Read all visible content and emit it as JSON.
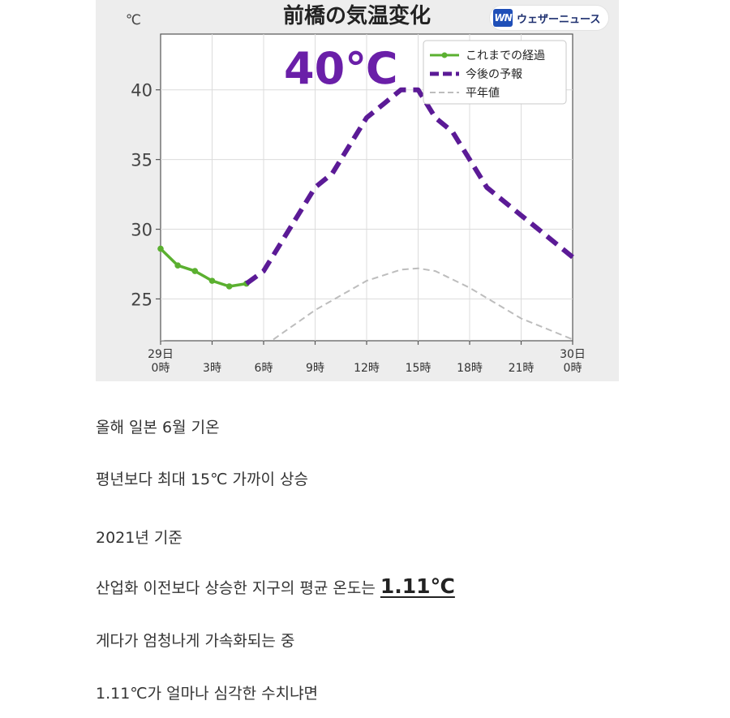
{
  "chart_data": {
    "type": "line",
    "title": "前橋の気温変化",
    "unit_label": "℃",
    "annotation": "40℃",
    "brand": "ウェザーニュース",
    "brand_logo": "WN",
    "ylim": [
      22,
      44
    ],
    "y_ticks": [
      25,
      30,
      35,
      40
    ],
    "xlim": [
      0,
      24
    ],
    "x_ticks": [
      {
        "x": 0,
        "top": "29日",
        "bottom": "0時"
      },
      {
        "x": 3,
        "top": "",
        "bottom": "3時"
      },
      {
        "x": 6,
        "top": "",
        "bottom": "6時"
      },
      {
        "x": 9,
        "top": "",
        "bottom": "9時"
      },
      {
        "x": 12,
        "top": "",
        "bottom": "12時"
      },
      {
        "x": 15,
        "top": "",
        "bottom": "15時"
      },
      {
        "x": 18,
        "top": "",
        "bottom": "18時"
      },
      {
        "x": 21,
        "top": "",
        "bottom": "21時"
      },
      {
        "x": 24,
        "top": "30日",
        "bottom": "0時"
      }
    ],
    "grid": true,
    "legend_position": "top-right",
    "series": [
      {
        "name": "これまでの経過",
        "color": "#5bb030",
        "style": "solid-markers",
        "x": [
          0,
          1,
          2,
          3,
          4,
          5
        ],
        "y": [
          28.6,
          27.4,
          27.0,
          26.3,
          25.9,
          26.1
        ]
      },
      {
        "name": "今後の予報",
        "color": "#5b1a96",
        "style": "dashed",
        "x": [
          5,
          6,
          7,
          8,
          9,
          10,
          11,
          12,
          13,
          14,
          15,
          16,
          17,
          18,
          19,
          20,
          21,
          22,
          23,
          24
        ],
        "y": [
          26.1,
          27.0,
          29.0,
          31.0,
          33.0,
          34.0,
          36.0,
          38.0,
          39.0,
          40.0,
          40.0,
          38.0,
          37.0,
          35.0,
          33.0,
          32.0,
          31.0,
          30.0,
          29.0,
          28.0
        ]
      },
      {
        "name": "平年値",
        "color": "#bdbdbd",
        "style": "dashed-thin",
        "x": [
          0,
          3,
          6,
          9,
          12,
          14,
          15,
          16,
          18,
          21,
          24
        ],
        "y": [
          22.0,
          21.3,
          21.6,
          24.2,
          26.3,
          27.1,
          27.2,
          27.0,
          25.8,
          23.6,
          22.1
        ]
      }
    ]
  },
  "article": {
    "lines": [
      "올해 일본 6월 기온",
      "평년보다 최대 15℃ 가까이 상승",
      "2021년 기준",
      "산업화 이전보다 상승한 지구의 평균 온도는",
      "게다가 엄청나게 가속화되는 중",
      "1.11℃가 얼마나 심각한 수치냐면"
    ],
    "emphasis": "1.11℃"
  }
}
